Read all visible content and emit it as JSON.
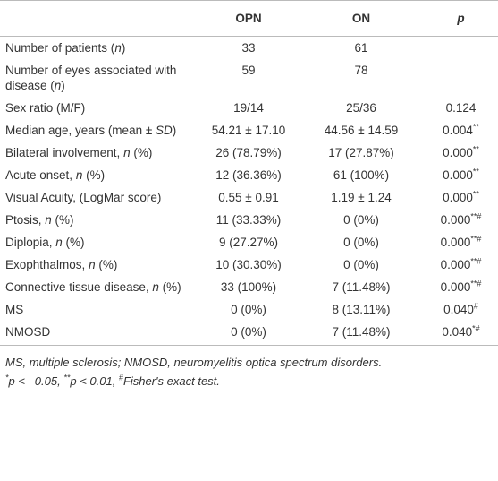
{
  "table": {
    "header": [
      "OPN",
      "ON",
      "p"
    ],
    "rows": [
      {
        "label": [
          "Number of patients (",
          "n",
          ")"
        ],
        "opn": "33",
        "on": "61"
      },
      {
        "label": [
          "Number of eyes associated with disease (",
          "n",
          ")"
        ],
        "opn": "59",
        "on": "78"
      },
      {
        "label": [
          "Sex ratio (M/F)"
        ],
        "opn": "19/14",
        "on": "25/36",
        "p": [
          "0.124"
        ]
      },
      {
        "label": [
          "Median age, years (mean ± ",
          "SD",
          ")"
        ],
        "opn": "54.21 ± 17.10",
        "on": "44.56 ± 14.59",
        "p": [
          "0.004",
          "**"
        ]
      },
      {
        "label": [
          "Bilateral involvement, ",
          "n",
          " (%)"
        ],
        "opn": "26 (78.79%)",
        "on": "17 (27.87%)",
        "p": [
          "0.000",
          "**"
        ]
      },
      {
        "label": [
          "Acute onset, ",
          "n",
          " (%)"
        ],
        "opn": "12 (36.36%)",
        "on": "61 (100%)",
        "p": [
          "0.000",
          "**"
        ]
      },
      {
        "label": [
          "Visual Acuity, (LogMar score)"
        ],
        "opn": "0.55 ± 0.91",
        "on": "1.19 ± 1.24",
        "p": [
          "0.000",
          "**"
        ]
      },
      {
        "label": [
          "Ptosis, ",
          "n",
          " (%)"
        ],
        "opn": "11 (33.33%)",
        "on": "0 (0%)",
        "p": [
          "0.000",
          "**#"
        ]
      },
      {
        "label": [
          "Diplopia, ",
          "n",
          " (%)"
        ],
        "opn": "9 (27.27%)",
        "on": "0 (0%)",
        "p": [
          "0.000",
          "**#"
        ]
      },
      {
        "label": [
          "Exophthalmos, ",
          "n",
          " (%)"
        ],
        "opn": "10 (30.30%)",
        "on": "0 (0%)",
        "p": [
          "0.000",
          "**#"
        ]
      },
      {
        "label": [
          "Connective tissue disease, ",
          "n",
          " (%)"
        ],
        "opn": "33 (100%)",
        "on": "7 (11.48%)",
        "p": [
          "0.000",
          "**#"
        ]
      },
      {
        "label": [
          "MS"
        ],
        "opn": "0 (0%)",
        "on": "8 (13.11%)",
        "p": [
          "0.040",
          "#"
        ]
      },
      {
        "label": [
          "NMOSD"
        ],
        "opn": "0 (0%)",
        "on": "7 (11.48%)",
        "p": [
          "0.040",
          "*#"
        ]
      }
    ]
  },
  "footnotes": {
    "line1": "MS, multiple sclerosis; NMOSD, neuromyelitis optica spectrum disorders.",
    "line2": [
      "*",
      "p",
      " < –0.05, ",
      "**",
      "p",
      " < 0.01, ",
      "#",
      "Fisher's exact test."
    ]
  }
}
